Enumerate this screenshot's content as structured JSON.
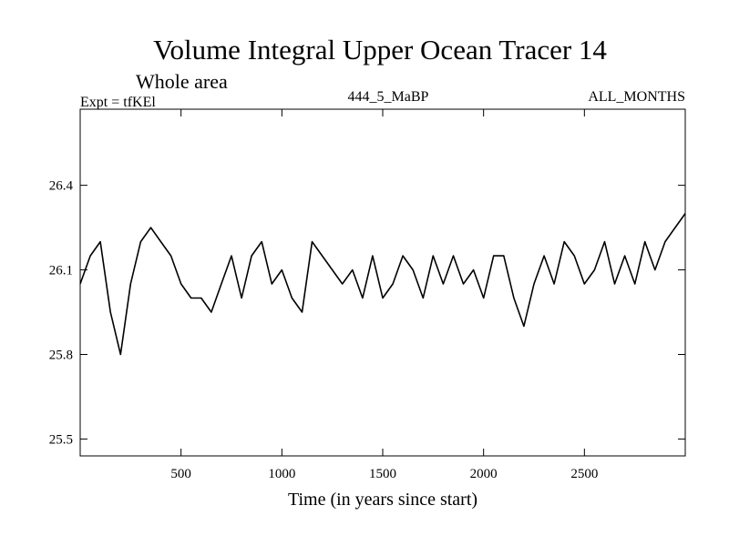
{
  "chart_data": {
    "type": "line",
    "title": "Volume Integral Upper Ocean Tracer 14",
    "subtitle": "Whole area",
    "annotations": {
      "left": "Expt = tfKEl",
      "center": "444_5_MaBP",
      "right": "ALL_MONTHS"
    },
    "xlabel": "Time (in years since start)",
    "ylabel": "",
    "xlim": [
      0,
      3000
    ],
    "ylim": [
      25.44,
      26.67
    ],
    "x_ticks": [
      500,
      1000,
      1500,
      2000,
      2500
    ],
    "y_ticks": [
      25.5,
      25.8,
      26.1,
      26.4
    ],
    "grid": false,
    "legend": "none",
    "line_color": "#000000",
    "series": [
      {
        "x": [
          0,
          50,
          100,
          150,
          200,
          250,
          300,
          350,
          400,
          450,
          500,
          550,
          600,
          650,
          700,
          750,
          800,
          850,
          900,
          950,
          1000,
          1050,
          1100,
          1150,
          1200,
          1250,
          1300,
          1350,
          1400,
          1450,
          1500,
          1550,
          1600,
          1650,
          1700,
          1750,
          1800,
          1850,
          1900,
          1950,
          2000,
          2050,
          2100,
          2150,
          2200,
          2250,
          2300,
          2350,
          2400,
          2450,
          2500,
          2550,
          2600,
          2650,
          2700,
          2750,
          2800,
          2850,
          2900,
          2950,
          3000
        ],
        "y": [
          26.05,
          26.15,
          26.2,
          25.95,
          25.8,
          26.05,
          26.2,
          26.25,
          26.2,
          26.15,
          26.05,
          26.0,
          26.0,
          25.95,
          26.05,
          26.15,
          26.0,
          26.15,
          26.2,
          26.05,
          26.1,
          26.0,
          25.95,
          26.2,
          26.15,
          26.1,
          26.05,
          26.1,
          26.0,
          26.15,
          26.0,
          26.05,
          26.15,
          26.1,
          26.0,
          26.15,
          26.05,
          26.15,
          26.05,
          26.1,
          26.0,
          26.15,
          26.15,
          26.0,
          25.9,
          26.05,
          26.15,
          26.05,
          26.2,
          26.15,
          26.05,
          26.1,
          26.2,
          26.05,
          26.15,
          26.05,
          26.2,
          26.1,
          26.2,
          26.25,
          26.3
        ]
      }
    ]
  }
}
